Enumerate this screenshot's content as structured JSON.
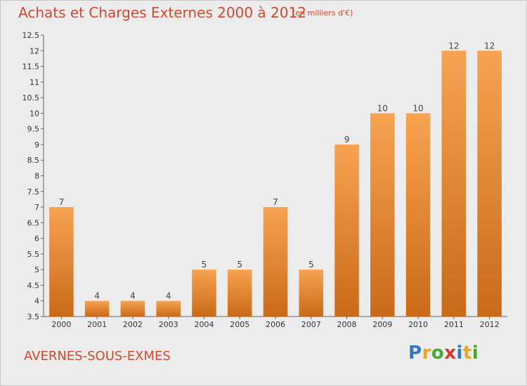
{
  "header": {
    "title": "Achats et Charges Externes 2000 à 2012",
    "unit": "(en milliers d'€)"
  },
  "footer": {
    "commune": "AVERNES-SOUS-EXMES",
    "brand": "Proxiti",
    "brand_colors": [
      "#2f78c4",
      "#e8a81c",
      "#4aa832",
      "#d8342c",
      "#2f78c4",
      "#e8a81c",
      "#4aa832"
    ]
  },
  "chart_data": {
    "type": "bar",
    "categories": [
      "2000",
      "2001",
      "2002",
      "2003",
      "2004",
      "2005",
      "2006",
      "2007",
      "2008",
      "2009",
      "2010",
      "2011",
      "2012"
    ],
    "values": [
      7,
      4,
      4,
      4,
      5,
      5,
      7,
      5,
      9,
      10,
      10,
      12,
      12
    ],
    "data_labels": [
      "7",
      "4",
      "4",
      "4",
      "5",
      "5",
      "7",
      "5",
      "9",
      "10",
      "10",
      "12",
      "12"
    ],
    "ylim": [
      3.5,
      12.5
    ],
    "yticks": [
      3.5,
      4,
      4.5,
      5,
      5.5,
      6,
      6.5,
      7,
      7.5,
      8,
      8.5,
      9,
      9.5,
      10,
      10.5,
      11,
      11.5,
      12,
      12.5
    ],
    "ytick_labels": [
      "3.5",
      "4",
      "4.5",
      "5",
      "5.5",
      "6",
      "6.5",
      "7",
      "7.5",
      "8",
      "8.5",
      "9",
      "9.5",
      "10",
      "10.5",
      "11",
      "11.5",
      "12",
      "12.5"
    ],
    "grid": false,
    "bar_color_top": "#f7a352",
    "bar_color_bottom": "#c96a17"
  }
}
